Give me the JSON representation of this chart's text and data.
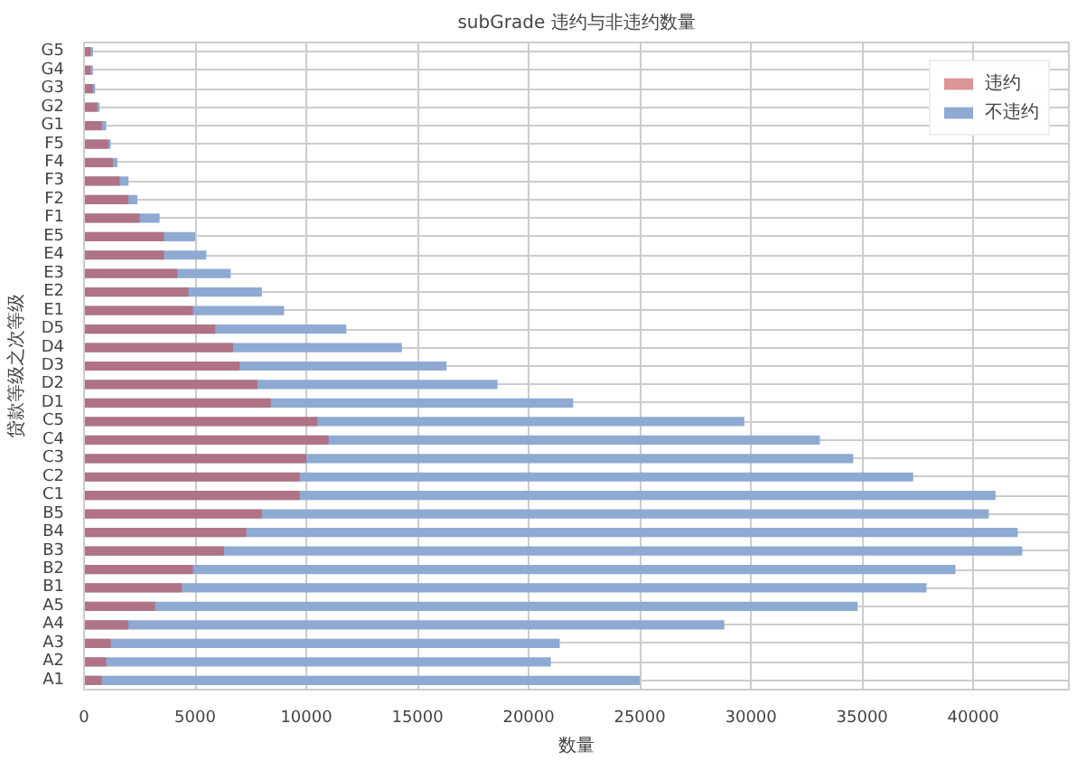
{
  "chart_data": {
    "type": "bar",
    "orientation": "horizontal",
    "title": "subGrade 违约与非违约数量",
    "xlabel": "数量",
    "ylabel": "贷款等级之次等级",
    "categories": [
      "G5",
      "G4",
      "G3",
      "G2",
      "G1",
      "F5",
      "F4",
      "F3",
      "F2",
      "F1",
      "E5",
      "E4",
      "E3",
      "E2",
      "E1",
      "D5",
      "D4",
      "D3",
      "D2",
      "D1",
      "C5",
      "C4",
      "C3",
      "C2",
      "C1",
      "B5",
      "B4",
      "B3",
      "B2",
      "B1",
      "A5",
      "A4",
      "A3",
      "A2",
      "A1"
    ],
    "series": [
      {
        "name": "不违约",
        "color": "#8eaad3",
        "values": [
          400,
          400,
          500,
          700,
          1000,
          1200,
          1500,
          2000,
          2400,
          3400,
          5000,
          5500,
          6600,
          8000,
          9000,
          11800,
          14300,
          16300,
          18600,
          22000,
          29700,
          33100,
          34600,
          37300,
          41000,
          40700,
          42000,
          42200,
          39200,
          37900,
          34800,
          28800,
          21400,
          21000,
          25000
        ]
      },
      {
        "name": "违约",
        "color": "#c44e52",
        "values": [
          300,
          300,
          400,
          600,
          800,
          1100,
          1300,
          1600,
          2000,
          2500,
          3600,
          3600,
          4200,
          4700,
          4900,
          5900,
          6700,
          7000,
          7800,
          8400,
          10500,
          11000,
          10000,
          9700,
          9700,
          8000,
          7300,
          6300,
          4900,
          4400,
          3200,
          2000,
          1200,
          1000,
          800
        ]
      }
    ],
    "xlim": [
      0,
      44300
    ],
    "xticks": [
      0,
      5000,
      10000,
      15000,
      20000,
      25000,
      30000,
      35000,
      40000
    ],
    "grid": true,
    "legend": "top right"
  }
}
